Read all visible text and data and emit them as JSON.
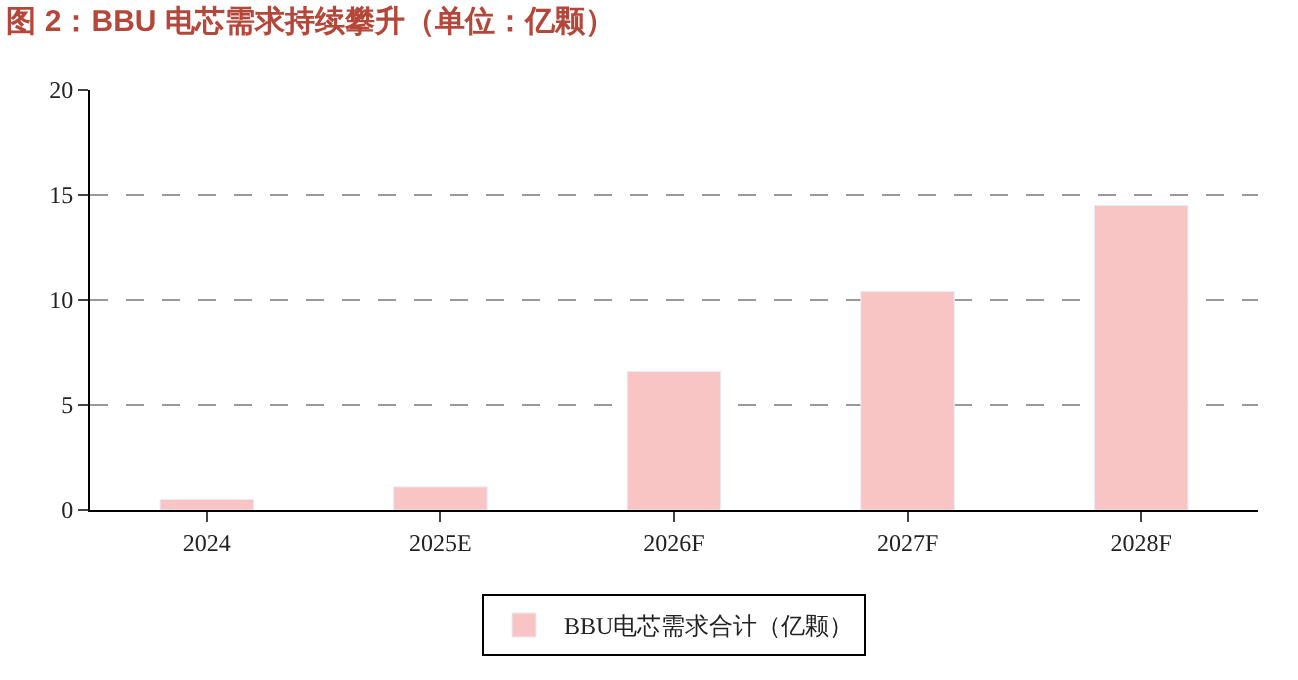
{
  "chart_data": {
    "type": "bar",
    "title": "图 2：BBU 电芯需求持续攀升（单位：亿颗）",
    "categories": [
      "2024",
      "2025E",
      "2026F",
      "2027F",
      "2028F"
    ],
    "series": [
      {
        "name": "BBU电芯需求合计（亿颗）",
        "color": "#f8c4c4",
        "values": [
          0.5,
          1.1,
          6.6,
          10.4,
          14.5
        ]
      }
    ],
    "ylim": [
      0,
      20
    ],
    "yticks": [
      0,
      5,
      10,
      15,
      20
    ],
    "grid": "y",
    "legend": "bottom"
  }
}
